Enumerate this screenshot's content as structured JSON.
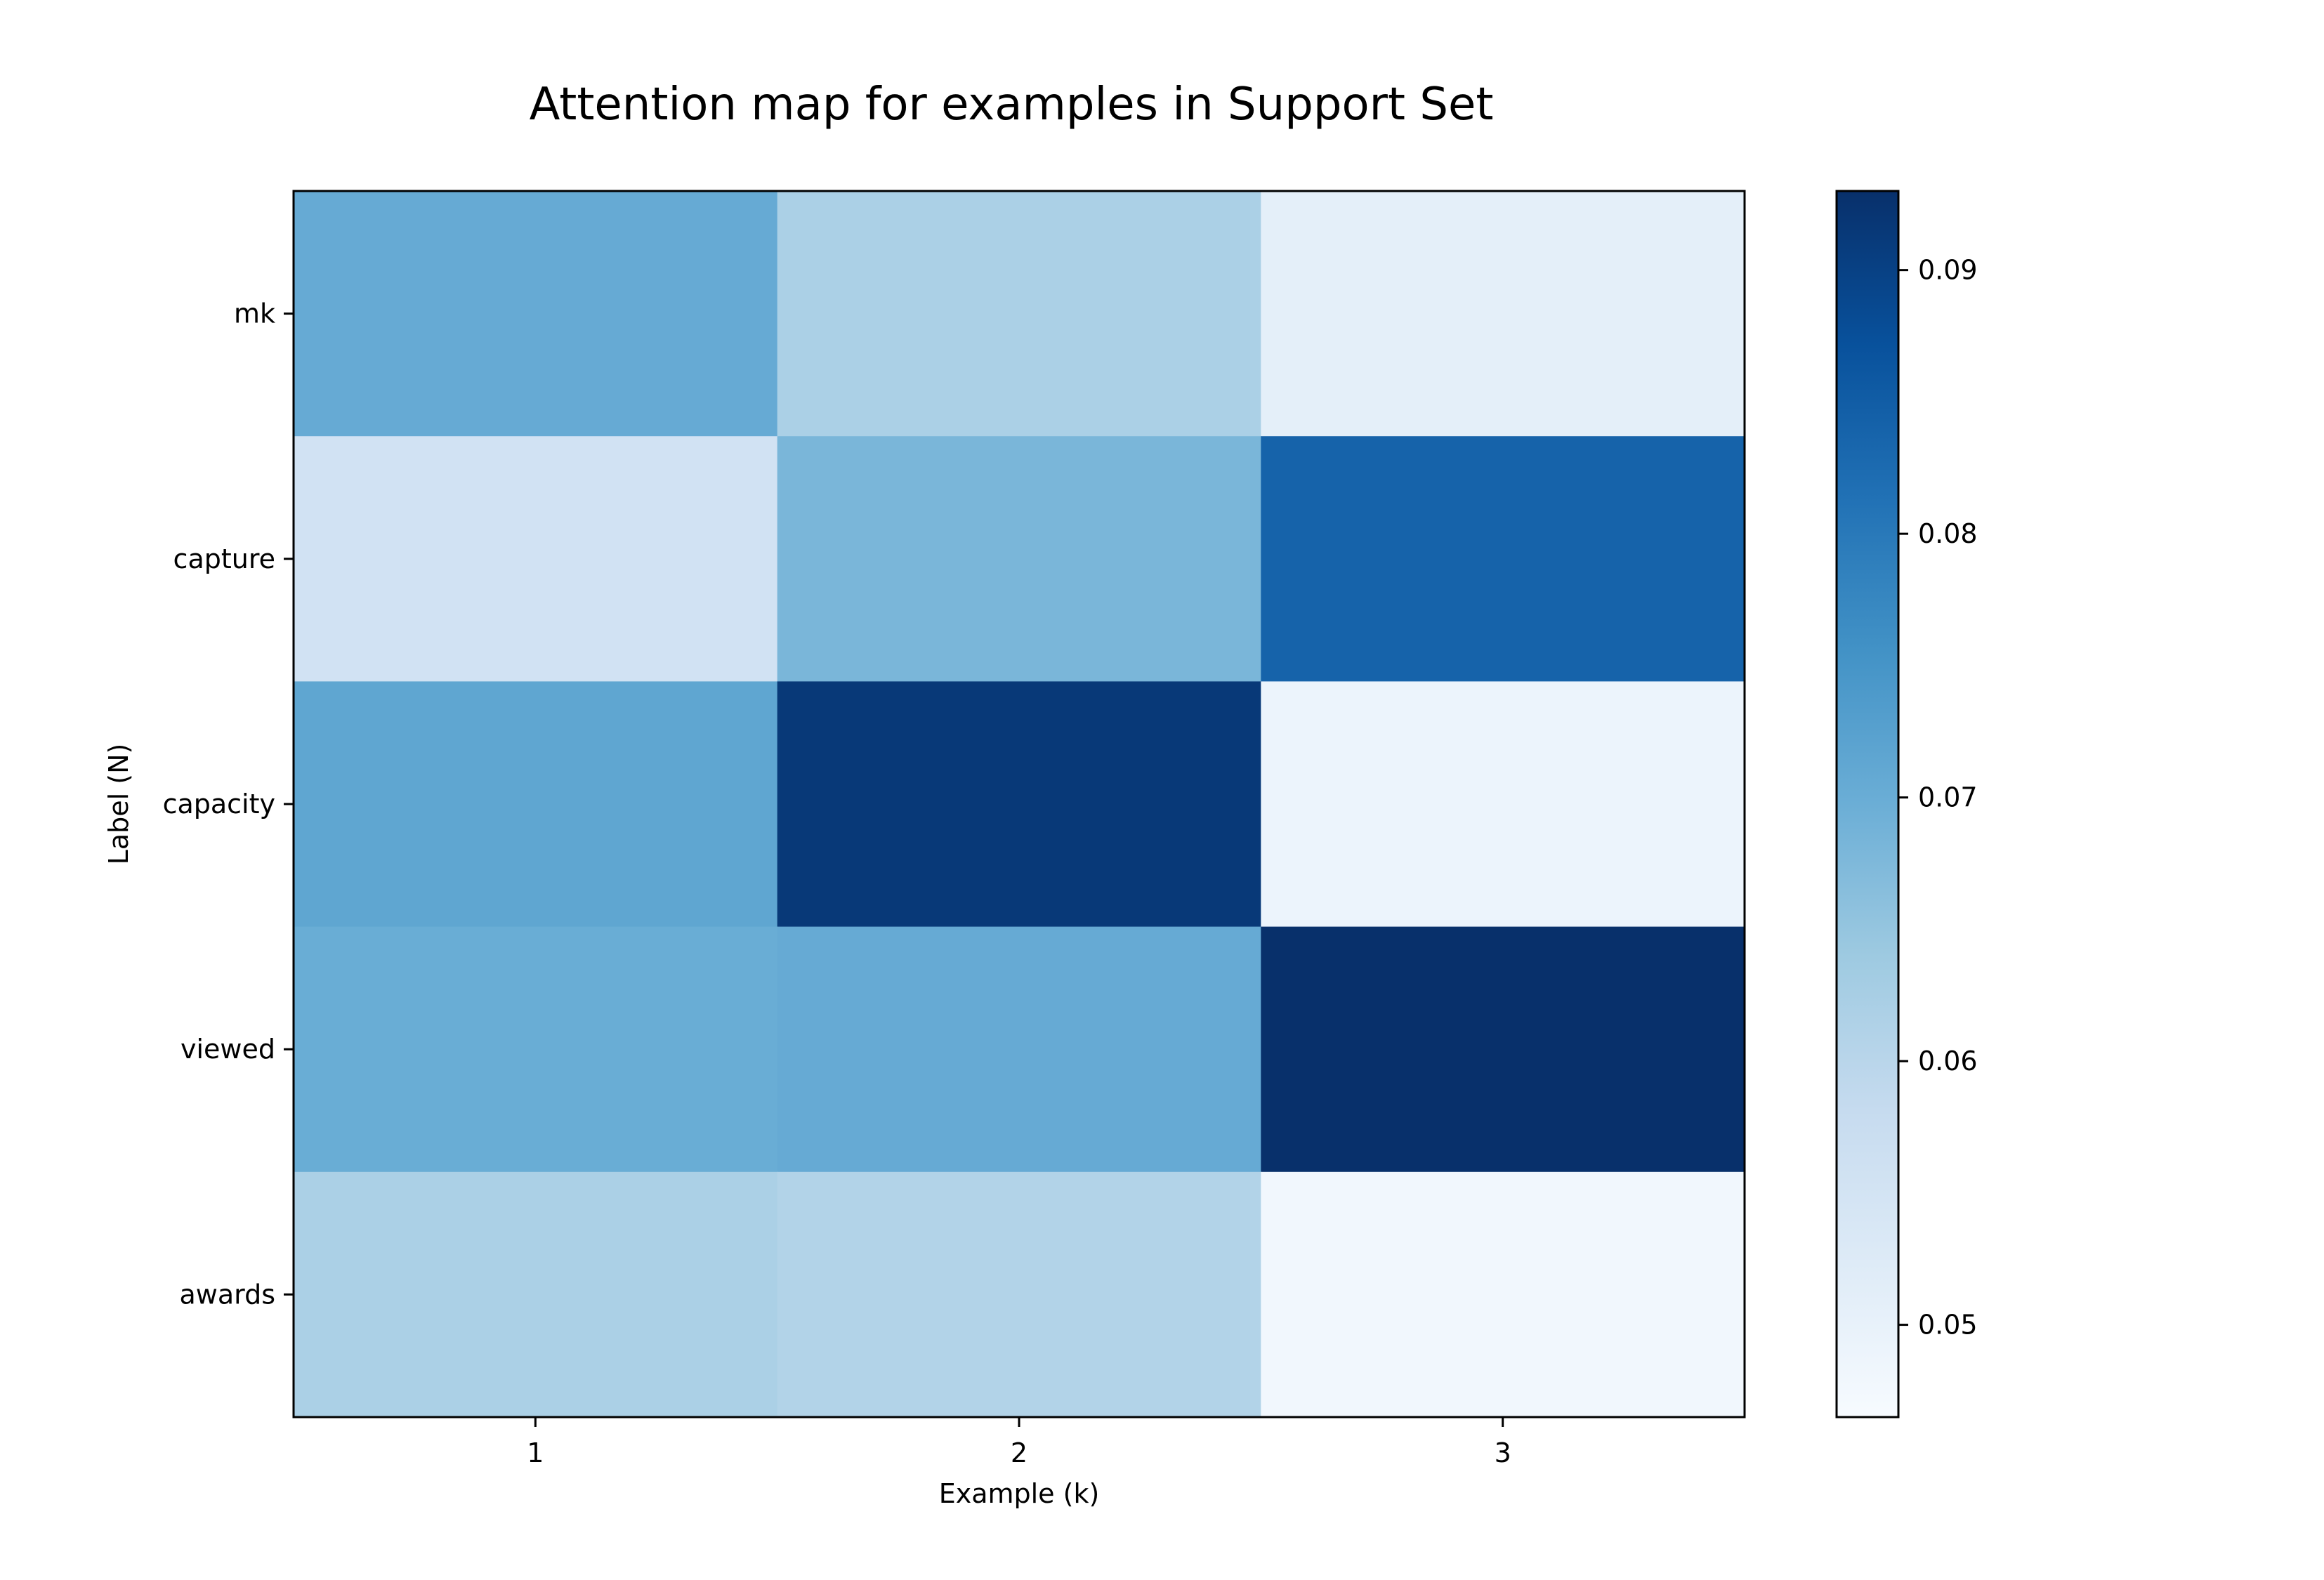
{
  "chart_data": {
    "type": "heatmap",
    "title": "Attention map for examples in Support Set",
    "xlabel": "Example (k)",
    "ylabel": "Label (N)",
    "x_categories": [
      "1",
      "2",
      "3"
    ],
    "y_categories": [
      "mk",
      "capture",
      "capacity",
      "viewed",
      "awards"
    ],
    "values": [
      [
        0.0705,
        0.062,
        0.051
      ],
      [
        0.0555,
        0.068,
        0.084
      ],
      [
        0.0715,
        0.0915,
        0.049
      ],
      [
        0.07,
        0.0705,
        0.093
      ],
      [
        0.062,
        0.061,
        0.048
      ]
    ],
    "colormap": "Blues",
    "colorbar": {
      "vmin": 0.0465,
      "vmax": 0.093,
      "ticks": [
        0.05,
        0.06,
        0.07,
        0.08,
        0.09
      ],
      "tick_labels": [
        "0.05",
        "0.06",
        "0.07",
        "0.08",
        "0.09"
      ]
    },
    "grid": false
  }
}
